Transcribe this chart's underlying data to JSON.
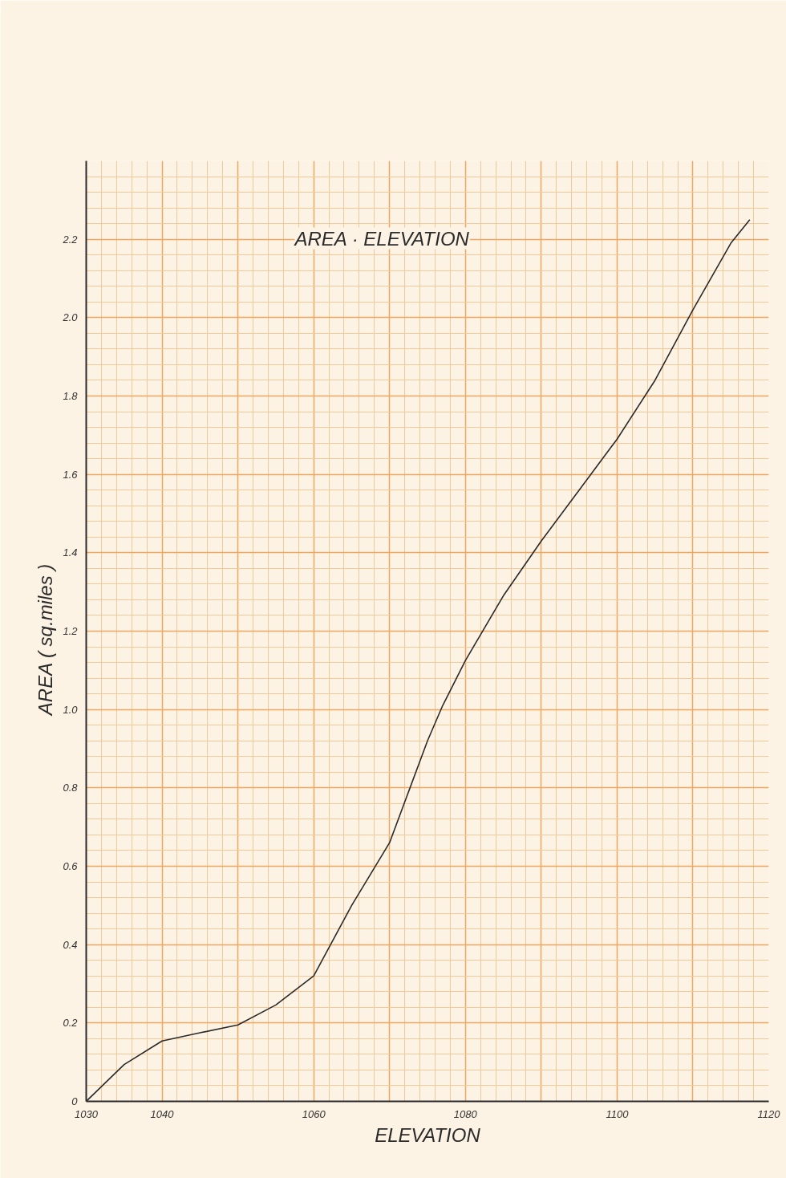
{
  "chart_data": {
    "type": "line",
    "title": "AREA · ELEVATION",
    "xlabel": "ELEVATION",
    "ylabel": "AREA    ( sq.miles )",
    "x": [
      1030,
      1035,
      1040,
      1045,
      1050,
      1055,
      1060,
      1065,
      1070,
      1075,
      1077,
      1080,
      1085,
      1090,
      1095,
      1100,
      1105,
      1110,
      1115,
      1117.5
    ],
    "series": [
      {
        "color": "#2a2a2a",
        "values": [
          0,
          0.094,
          0.154,
          0.175,
          0.195,
          0.246,
          0.32,
          0.5,
          0.66,
          0.92,
          1.01,
          1.125,
          1.29,
          1.43,
          1.56,
          1.69,
          1.84,
          2.02,
          2.19,
          2.25
        ]
      }
    ],
    "xlim": [
      1030,
      1120
    ],
    "ylim": [
      0,
      2.4
    ],
    "xticks": [
      1030,
      1040,
      1060,
      1080,
      1100,
      1120
    ],
    "yticks": [
      0,
      0.2,
      0.4,
      0.6,
      0.8,
      {
        "value": 1,
        "label": "1.0"
      },
      1.2,
      1.4,
      1.6,
      1.8,
      {
        "value": 2,
        "label": "2.0"
      },
      2.2
    ],
    "grid": true,
    "marker": "none",
    "line_style": "solid"
  }
}
